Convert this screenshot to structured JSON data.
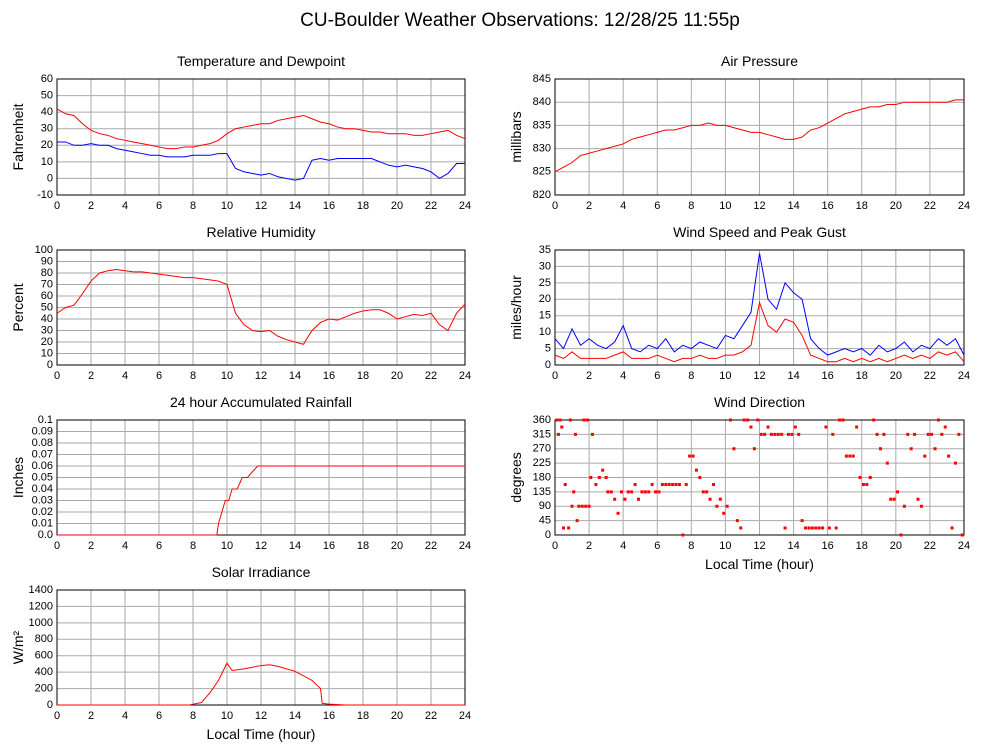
{
  "title": "CU-Boulder Weather Observations: 12/28/25 11:55p",
  "chart_data": [
    {
      "type": "line",
      "title": "Temperature and Dewpoint",
      "y_label": "Fahrenheit",
      "xlim": [
        0,
        24
      ],
      "xticks": [
        0,
        2,
        4,
        6,
        8,
        10,
        12,
        14,
        16,
        18,
        20,
        22,
        24
      ],
      "ylim": [
        -10,
        60
      ],
      "yticks": [
        -10,
        0,
        10,
        20,
        30,
        40,
        50,
        60
      ],
      "grid": true,
      "x": [
        0,
        0.5,
        1,
        1.5,
        2,
        2.5,
        3,
        3.5,
        4,
        4.5,
        5,
        5.5,
        6,
        6.5,
        7,
        7.5,
        8,
        8.5,
        9,
        9.5,
        10,
        10.5,
        11,
        11.5,
        12,
        12.5,
        13,
        13.5,
        14,
        14.5,
        15,
        15.5,
        16,
        16.5,
        17,
        17.5,
        18,
        18.5,
        19,
        19.5,
        20,
        20.5,
        21,
        21.5,
        22,
        22.5,
        23,
        23.5,
        24
      ],
      "series": [
        {
          "color": "#ff0000",
          "values": [
            42,
            39,
            38,
            33,
            29,
            27,
            26,
            24,
            23,
            22,
            21,
            20,
            19,
            18,
            18,
            19,
            19,
            20,
            21,
            23,
            27,
            30,
            31,
            32,
            33,
            33,
            35,
            36,
            37,
            38,
            36,
            34,
            33,
            31,
            30,
            30,
            29,
            28,
            28,
            27,
            27,
            27,
            26,
            26,
            27,
            28,
            29,
            26,
            24
          ]
        },
        {
          "color": "#0000ff",
          "values": [
            22,
            22,
            20,
            20,
            21,
            20,
            20,
            18,
            17,
            16,
            15,
            14,
            14,
            13,
            13,
            13,
            14,
            14,
            14,
            15,
            15,
            6,
            4,
            3,
            2,
            3,
            1,
            0,
            -1,
            0,
            11,
            12,
            11,
            12,
            12,
            12,
            12,
            12,
            10,
            8,
            7,
            8,
            7,
            6,
            4,
            0,
            3,
            9,
            9
          ]
        }
      ]
    },
    {
      "type": "line",
      "title": "Air Pressure",
      "y_label": "millibars",
      "xlim": [
        0,
        24
      ],
      "xticks": [
        0,
        2,
        4,
        6,
        8,
        10,
        12,
        14,
        16,
        18,
        20,
        22,
        24
      ],
      "ylim": [
        820,
        845
      ],
      "yticks": [
        820,
        825,
        830,
        835,
        840,
        845
      ],
      "grid": true,
      "x": [
        0,
        0.5,
        1,
        1.5,
        2,
        2.5,
        3,
        3.5,
        4,
        4.5,
        5,
        5.5,
        6,
        6.5,
        7,
        7.5,
        8,
        8.5,
        9,
        9.5,
        10,
        10.5,
        11,
        11.5,
        12,
        12.5,
        13,
        13.5,
        14,
        14.5,
        15,
        15.5,
        16,
        16.5,
        17,
        17.5,
        18,
        18.5,
        19,
        19.5,
        20,
        20.5,
        21,
        21.5,
        22,
        22.5,
        23,
        23.5,
        24
      ],
      "series": [
        {
          "color": "#ff0000",
          "values": [
            825,
            826,
            827,
            828.5,
            829,
            829.5,
            830,
            830.5,
            831,
            832,
            832.5,
            833,
            833.5,
            834,
            834,
            834.5,
            835,
            835,
            835.5,
            835,
            835,
            834.5,
            834,
            833.5,
            833.5,
            833,
            832.5,
            832,
            832,
            832.5,
            834,
            834.5,
            835.5,
            836.5,
            837.5,
            838,
            838.5,
            839,
            839,
            839.5,
            839.5,
            840,
            840,
            840,
            840,
            840,
            840,
            840.5,
            840.5
          ]
        }
      ]
    },
    {
      "type": "line",
      "title": "Relative Humidity",
      "y_label": "Percent",
      "xlim": [
        0,
        24
      ],
      "xticks": [
        0,
        2,
        4,
        6,
        8,
        10,
        12,
        14,
        16,
        18,
        20,
        22,
        24
      ],
      "ylim": [
        0,
        100
      ],
      "yticks": [
        0,
        10,
        20,
        30,
        40,
        50,
        60,
        70,
        80,
        90,
        100
      ],
      "grid": true,
      "x": [
        0,
        0.5,
        1,
        1.5,
        2,
        2.5,
        3,
        3.5,
        4,
        4.5,
        5,
        5.5,
        6,
        6.5,
        7,
        7.5,
        8,
        8.5,
        9,
        9.5,
        10,
        10.5,
        11,
        11.5,
        12,
        12.5,
        13,
        13.5,
        14,
        14.5,
        15,
        15.5,
        16,
        16.5,
        17,
        17.5,
        18,
        18.5,
        19,
        19.5,
        20,
        20.5,
        21,
        21.5,
        22,
        22.5,
        23,
        23.5,
        24
      ],
      "series": [
        {
          "color": "#ff0000",
          "values": [
            45,
            50,
            52,
            62,
            73,
            80,
            82,
            83,
            82,
            81,
            81,
            80,
            79,
            78,
            77,
            76,
            76,
            75,
            74,
            73,
            70,
            45,
            35,
            30,
            29,
            30,
            25,
            22,
            20,
            18,
            30,
            37,
            40,
            39,
            42,
            45,
            47,
            48,
            48,
            45,
            40,
            42,
            44,
            43,
            45,
            35,
            30,
            45,
            53
          ]
        }
      ]
    },
    {
      "type": "line",
      "title": "Wind Speed and Peak Gust",
      "y_label": "miles/hour",
      "xlim": [
        0,
        24
      ],
      "xticks": [
        0,
        2,
        4,
        6,
        8,
        10,
        12,
        14,
        16,
        18,
        20,
        22,
        24
      ],
      "ylim": [
        0,
        35
      ],
      "yticks": [
        0,
        5,
        10,
        15,
        20,
        25,
        30,
        35
      ],
      "grid": true,
      "x": [
        0,
        0.5,
        1,
        1.5,
        2,
        2.5,
        3,
        3.5,
        4,
        4.5,
        5,
        5.5,
        6,
        6.5,
        7,
        7.5,
        8,
        8.5,
        9,
        9.5,
        10,
        10.5,
        11,
        11.5,
        12,
        12.5,
        13,
        13.5,
        14,
        14.5,
        15,
        15.5,
        16,
        16.5,
        17,
        17.5,
        18,
        18.5,
        19,
        19.5,
        20,
        20.5,
        21,
        21.5,
        22,
        22.5,
        23,
        23.5,
        24
      ],
      "series": [
        {
          "color": "#0000ff",
          "values": [
            8,
            5,
            11,
            6,
            8,
            6,
            5,
            7,
            12,
            5,
            4,
            6,
            5,
            8,
            4,
            6,
            5,
            7,
            6,
            5,
            9,
            8,
            12,
            16,
            34,
            20,
            17,
            25,
            22,
            20,
            8,
            5,
            3,
            4,
            5,
            4,
            5,
            3,
            6,
            4,
            5,
            7,
            4,
            6,
            5,
            8,
            6,
            8,
            3
          ]
        },
        {
          "color": "#ff0000",
          "values": [
            3,
            2,
            4,
            2,
            2,
            2,
            2,
            3,
            4,
            2,
            2,
            2,
            3,
            2,
            1,
            2,
            2,
            3,
            2,
            2,
            3,
            3,
            4,
            6,
            19,
            12,
            10,
            14,
            13,
            9,
            3,
            2,
            1,
            1,
            2,
            1,
            2,
            1,
            2,
            1,
            2,
            3,
            2,
            3,
            2,
            4,
            3,
            4,
            1
          ]
        }
      ]
    },
    {
      "type": "line",
      "title": "24 hour Accumulated Rainfall",
      "y_label": "Inches",
      "xlim": [
        0,
        24
      ],
      "xticks": [
        0,
        2,
        4,
        6,
        8,
        10,
        12,
        14,
        16,
        18,
        20,
        22,
        24
      ],
      "ylim": [
        0,
        0.1
      ],
      "yticks": [
        {
          "value": 0,
          "label": "0.0"
        },
        0.01,
        0.02,
        0.03,
        0.04,
        0.05,
        0.06,
        0.07,
        0.08,
        0.09,
        0.1
      ],
      "grid": true,
      "x": [
        0,
        9.4,
        9.5,
        9.7,
        9.9,
        10.1,
        10.3,
        10.6,
        10.9,
        11.2,
        11.8,
        24
      ],
      "series": [
        {
          "color": "#ff0000",
          "values": [
            0,
            0,
            0.01,
            0.02,
            0.03,
            0.03,
            0.04,
            0.04,
            0.05,
            0.05,
            0.06,
            0.06
          ]
        }
      ]
    },
    {
      "type": "scatter",
      "title": "Wind Direction",
      "y_label": "degrees",
      "x_label": "Local Time (hour)",
      "xlim": [
        0,
        24
      ],
      "xticks": [
        0,
        2,
        4,
        6,
        8,
        10,
        12,
        14,
        16,
        18,
        20,
        22,
        24
      ],
      "ylim": [
        0,
        360
      ],
      "yticks": [
        0,
        45,
        90,
        135,
        180,
        225,
        270,
        315,
        360
      ],
      "grid": true,
      "x": [
        0.1,
        0.2,
        0.3,
        0.4,
        0.5,
        0.6,
        0.8,
        0.9,
        1.0,
        1.1,
        1.2,
        1.3,
        1.4,
        1.6,
        1.7,
        1.8,
        1.9,
        2.0,
        2.1,
        2.2,
        2.4,
        2.6,
        2.8,
        3.0,
        3.1,
        3.3,
        3.5,
        3.7,
        3.9,
        4.1,
        4.3,
        4.5,
        4.7,
        4.9,
        5.1,
        5.3,
        5.5,
        5.7,
        5.9,
        6.1,
        6.3,
        6.5,
        6.7,
        6.9,
        7.1,
        7.3,
        7.5,
        7.7,
        7.9,
        8.1,
        8.3,
        8.5,
        8.7,
        8.9,
        9.1,
        9.3,
        9.5,
        9.7,
        9.9,
        10.1,
        10.3,
        10.5,
        10.7,
        10.9,
        11.1,
        11.3,
        11.5,
        11.7,
        11.9,
        12.1,
        12.3,
        12.5,
        12.7,
        12.9,
        13.1,
        13.3,
        13.5,
        13.7,
        13.9,
        14.1,
        14.3,
        14.5,
        14.7,
        14.9,
        15.1,
        15.3,
        15.5,
        15.7,
        15.9,
        16.1,
        16.3,
        16.5,
        16.7,
        16.9,
        17.1,
        17.3,
        17.5,
        17.7,
        17.9,
        18.1,
        18.3,
        18.5,
        18.7,
        18.9,
        19.1,
        19.3,
        19.5,
        19.7,
        19.9,
        20.1,
        20.3,
        20.5,
        20.7,
        20.9,
        21.1,
        21.3,
        21.5,
        21.7,
        21.9,
        22.1,
        22.3,
        22.5,
        22.7,
        22.9,
        23.1,
        23.3,
        23.5,
        23.7,
        23.9
      ],
      "series": [
        {
          "color": "#ff0000",
          "values": [
            360,
            315,
            360,
            338,
            22,
            158,
            22,
            360,
            90,
            135,
            315,
            45,
            90,
            90,
            360,
            90,
            360,
            90,
            180,
            315,
            158,
            180,
            203,
            180,
            135,
            135,
            112,
            68,
            135,
            112,
            135,
            135,
            158,
            112,
            135,
            135,
            135,
            158,
            135,
            135,
            158,
            158,
            158,
            158,
            158,
            158,
            0,
            158,
            247,
            247,
            203,
            180,
            135,
            135,
            112,
            158,
            90,
            112,
            68,
            90,
            360,
            270,
            45,
            22,
            360,
            360,
            338,
            270,
            360,
            315,
            315,
            338,
            315,
            315,
            315,
            315,
            22,
            315,
            315,
            338,
            315,
            45,
            22,
            22,
            22,
            22,
            22,
            22,
            338,
            22,
            315,
            22,
            360,
            360,
            247,
            247,
            247,
            338,
            180,
            158,
            158,
            180,
            360,
            315,
            270,
            315,
            225,
            112,
            112,
            135,
            0,
            90,
            315,
            270,
            315,
            112,
            90,
            247,
            315,
            315,
            270,
            360,
            315,
            338,
            247,
            22,
            225,
            315,
            0
          ]
        }
      ]
    },
    {
      "type": "line",
      "title": "Solar Irradiance",
      "y_label": "W/m²",
      "x_label": "Local Time (hour)",
      "xlim": [
        0,
        24
      ],
      "xticks": [
        0,
        2,
        4,
        6,
        8,
        10,
        12,
        14,
        16,
        18,
        20,
        22,
        24
      ],
      "ylim": [
        0,
        1400
      ],
      "yticks": [
        0,
        200,
        400,
        600,
        800,
        1000,
        1200,
        1400
      ],
      "grid": true,
      "x": [
        0,
        7.8,
        8.0,
        8.5,
        9.0,
        9.5,
        10.0,
        10.3,
        11.0,
        12.0,
        12.5,
        13.0,
        14.0,
        15.0,
        15.5,
        15.6,
        16.0,
        17.0,
        24
      ],
      "series": [
        {
          "color": "#ff0000",
          "values": [
            0,
            0,
            10,
            30,
            150,
            300,
            510,
            420,
            440,
            480,
            490,
            470,
            410,
            300,
            200,
            20,
            10,
            0,
            0
          ]
        }
      ]
    }
  ]
}
